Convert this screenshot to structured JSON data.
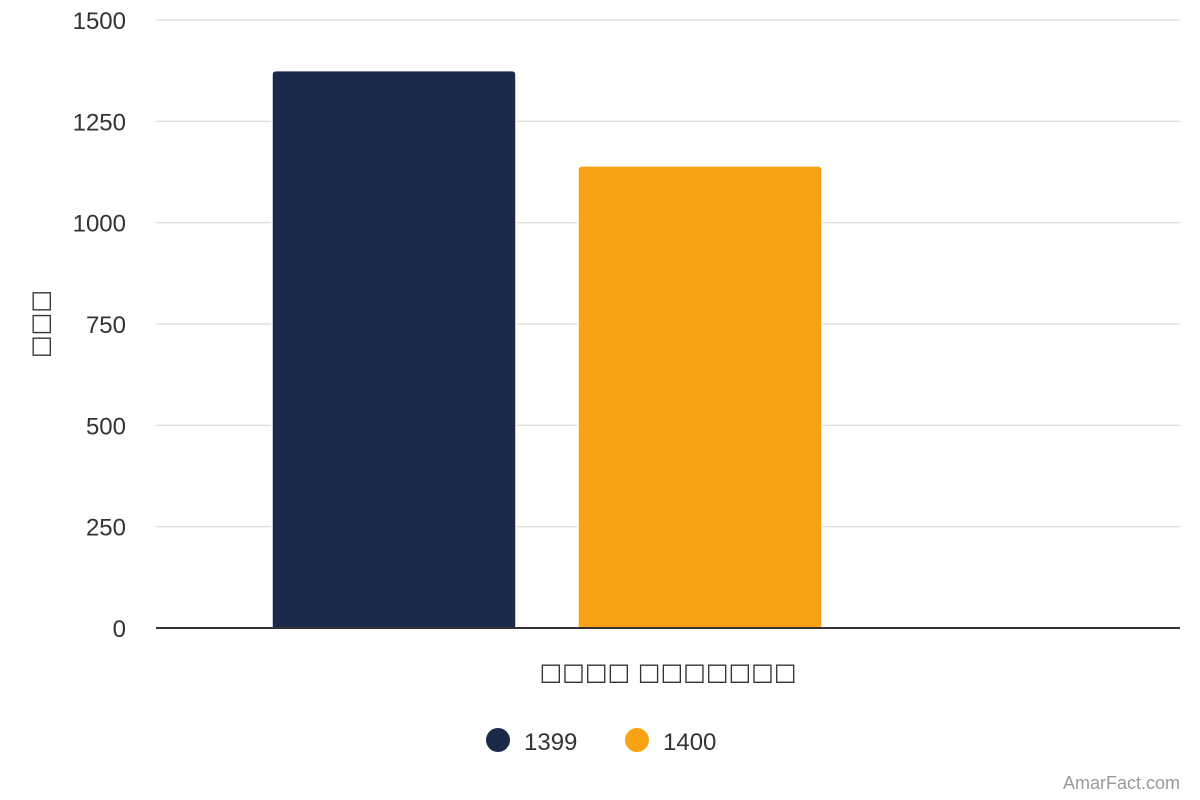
{
  "chart_data": {
    "type": "bar",
    "categories": [
      "□□□□ □□□□□□□"
    ],
    "xlabel": "□□□□ □□□□□□□",
    "ylabel": "□□□",
    "ylim": [
      0,
      1500
    ],
    "yticks": [
      0,
      250,
      500,
      750,
      1000,
      1250,
      1500
    ],
    "grid": true,
    "legend_position": "bottom",
    "series": [
      {
        "name": "1399",
        "values": [
          1375
        ],
        "color": "#1b2a4a"
      },
      {
        "name": "1400",
        "values": [
          1140
        ],
        "color": "#faa216"
      }
    ]
  },
  "watermark": "AmarFact.com"
}
